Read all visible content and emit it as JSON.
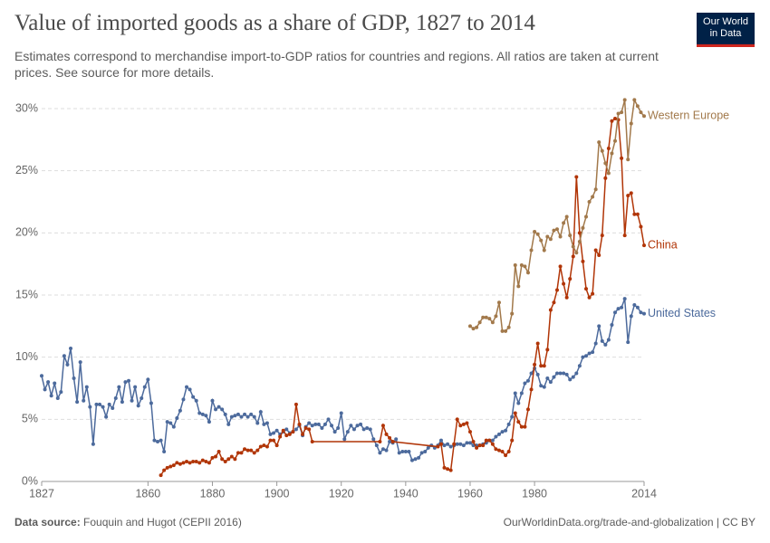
{
  "chart_data": {
    "type": "line",
    "title": "Value of imported goods as a share of GDP, 1827 to 2014",
    "subtitle": "Estimates correspond to merchandise import-to-GDP ratios for countries and regions. All ratios are taken at current prices. See source for more details.",
    "logo": {
      "line1": "Our World",
      "line2": "in Data"
    },
    "source_label": "Data source:",
    "source": "Fouquin and Hugot (CEPII 2016)",
    "footer_right": "OurWorldinData.org/trade-and-globalization | CC BY",
    "xlim": [
      1827,
      2014
    ],
    "xticks": [
      1827,
      1860,
      1880,
      1900,
      1920,
      1940,
      1960,
      1980,
      2014
    ],
    "ylim": [
      0,
      30
    ],
    "yticks": [
      {
        "value": 0,
        "label": "0%"
      },
      {
        "value": 5,
        "label": "5%"
      },
      {
        "value": 10,
        "label": "10%"
      },
      {
        "value": 15,
        "label": "15%"
      },
      {
        "value": 20,
        "label": "20%"
      },
      {
        "value": 25,
        "label": "25%"
      },
      {
        "value": 30,
        "label": "30%"
      }
    ],
    "grid": true,
    "series": [
      {
        "name": "United States",
        "color": "#4c6a9c",
        "x": [
          1827,
          1828,
          1829,
          1830,
          1831,
          1832,
          1833,
          1834,
          1835,
          1836,
          1837,
          1838,
          1839,
          1840,
          1841,
          1842,
          1843,
          1844,
          1845,
          1846,
          1847,
          1848,
          1849,
          1850,
          1851,
          1852,
          1853,
          1854,
          1855,
          1856,
          1857,
          1858,
          1859,
          1860,
          1861,
          1862,
          1863,
          1864,
          1865,
          1866,
          1867,
          1868,
          1869,
          1870,
          1871,
          1872,
          1873,
          1874,
          1875,
          1876,
          1877,
          1878,
          1879,
          1880,
          1881,
          1882,
          1883,
          1884,
          1885,
          1886,
          1887,
          1888,
          1889,
          1890,
          1891,
          1892,
          1893,
          1894,
          1895,
          1896,
          1897,
          1898,
          1899,
          1900,
          1901,
          1902,
          1903,
          1904,
          1905,
          1906,
          1907,
          1908,
          1909,
          1910,
          1911,
          1912,
          1913,
          1914,
          1915,
          1916,
          1917,
          1918,
          1919,
          1920,
          1921,
          1922,
          1923,
          1924,
          1925,
          1926,
          1927,
          1928,
          1929,
          1930,
          1931,
          1932,
          1933,
          1934,
          1935,
          1936,
          1937,
          1938,
          1939,
          1940,
          1941,
          1942,
          1943,
          1944,
          1945,
          1946,
          1947,
          1948,
          1949,
          1950,
          1951,
          1952,
          1953,
          1954,
          1955,
          1956,
          1957,
          1958,
          1959,
          1960,
          1961,
          1962,
          1963,
          1964,
          1965,
          1966,
          1967,
          1968,
          1969,
          1970,
          1971,
          1972,
          1973,
          1974,
          1975,
          1976,
          1977,
          1978,
          1979,
          1980,
          1981,
          1982,
          1983,
          1984,
          1985,
          1986,
          1987,
          1988,
          1989,
          1990,
          1991,
          1992,
          1993,
          1994,
          1995,
          1996,
          1997,
          1998,
          1999,
          2000,
          2001,
          2002,
          2003,
          2004,
          2005,
          2006,
          2007,
          2008,
          2009,
          2010,
          2011,
          2012,
          2013,
          2014
        ],
        "values": [
          8.5,
          7.4,
          8.0,
          6.9,
          7.9,
          6.7,
          7.2,
          10.1,
          9.4,
          10.7,
          8.3,
          6.4,
          9.6,
          6.5,
          7.6,
          6.0,
          3.0,
          6.2,
          6.2,
          6.0,
          5.2,
          6.2,
          5.9,
          6.7,
          7.6,
          6.4,
          8.0,
          8.1,
          6.5,
          7.6,
          6.1,
          6.7,
          7.6,
          8.2,
          6.3,
          3.3,
          3.2,
          3.3,
          2.4,
          4.8,
          4.7,
          4.4,
          5.1,
          5.7,
          6.6,
          7.6,
          7.4,
          6.8,
          6.5,
          5.5,
          5.4,
          5.3,
          4.8,
          6.5,
          5.8,
          6.0,
          5.8,
          5.4,
          4.6,
          5.2,
          5.3,
          5.4,
          5.2,
          5.4,
          5.2,
          5.4,
          5.2,
          4.7,
          5.6,
          4.6,
          4.7,
          3.8,
          3.9,
          4.1,
          3.8,
          4.0,
          4.2,
          3.9,
          4.0,
          4.2,
          4.5,
          3.7,
          4.4,
          4.7,
          4.5,
          4.6,
          4.6,
          4.3,
          4.6,
          5.0,
          4.5,
          4.0,
          4.3,
          5.5,
          3.4,
          4.0,
          4.5,
          4.2,
          4.5,
          4.6,
          4.2,
          4.3,
          4.2,
          3.4,
          2.9,
          2.3,
          2.6,
          2.5,
          3.2,
          3.1,
          3.4,
          2.3,
          2.4,
          2.4,
          2.4,
          1.7,
          1.8,
          1.9,
          2.3,
          2.4,
          2.7,
          2.9,
          2.7,
          2.9,
          3.3,
          2.9,
          3.0,
          2.8,
          2.9,
          3.0,
          3.0,
          2.9,
          3.1,
          3.1,
          2.9,
          2.9,
          2.9,
          3.0,
          3.1,
          3.3,
          3.3,
          3.6,
          3.8,
          4.0,
          4.1,
          4.6,
          5.2,
          7.1,
          6.3,
          7.1,
          7.9,
          8.1,
          8.7,
          9.1,
          8.6,
          7.7,
          7.6,
          8.3,
          8.0,
          8.4,
          8.7,
          8.7,
          8.7,
          8.6,
          8.2,
          8.4,
          8.7,
          9.3,
          10.0,
          10.1,
          10.3,
          10.4,
          11.1,
          12.5,
          11.3,
          11.0,
          11.4,
          12.6,
          13.6,
          13.9,
          14.0,
          14.7,
          11.2,
          13.3,
          14.2,
          14.0,
          13.6,
          13.5
        ]
      },
      {
        "name": "China",
        "color": "#b13507",
        "x": [
          1864,
          1865,
          1866,
          1867,
          1868,
          1869,
          1870,
          1871,
          1872,
          1873,
          1874,
          1875,
          1876,
          1877,
          1878,
          1879,
          1880,
          1881,
          1882,
          1883,
          1884,
          1885,
          1886,
          1887,
          1888,
          1889,
          1890,
          1891,
          1892,
          1893,
          1894,
          1895,
          1896,
          1897,
          1898,
          1899,
          1900,
          1901,
          1902,
          1903,
          1904,
          1905,
          1906,
          1907,
          1908,
          1909,
          1910,
          1911,
          1932,
          1933,
          1934,
          1935,
          1936,
          1950,
          1951,
          1952,
          1953,
          1954,
          1955,
          1956,
          1957,
          1958,
          1959,
          1960,
          1961,
          1962,
          1963,
          1964,
          1965,
          1966,
          1967,
          1968,
          1969,
          1970,
          1971,
          1972,
          1973,
          1974,
          1975,
          1976,
          1977,
          1978,
          1979,
          1980,
          1981,
          1982,
          1983,
          1984,
          1985,
          1986,
          1987,
          1988,
          1989,
          1990,
          1991,
          1992,
          1993,
          1994,
          1995,
          1996,
          1997,
          1998,
          1999,
          2000,
          2001,
          2002,
          2003,
          2004,
          2005,
          2006,
          2007,
          2008,
          2009,
          2010,
          2011,
          2012,
          2013,
          2014
        ],
        "values": [
          0.5,
          0.9,
          1.1,
          1.2,
          1.3,
          1.5,
          1.4,
          1.5,
          1.6,
          1.5,
          1.6,
          1.6,
          1.5,
          1.7,
          1.6,
          1.5,
          1.9,
          2.0,
          2.4,
          1.8,
          1.6,
          1.8,
          2.0,
          1.8,
          2.3,
          2.3,
          2.6,
          2.5,
          2.5,
          2.3,
          2.5,
          2.8,
          2.9,
          2.8,
          3.3,
          3.3,
          2.9,
          3.6,
          4.1,
          3.7,
          3.8,
          4.0,
          6.2,
          4.6,
          3.8,
          4.3,
          4.2,
          3.2,
          3.2,
          4.5,
          3.8,
          3.5,
          3.2,
          2.8,
          3.0,
          1.1,
          1.0,
          0.9,
          3.0,
          5.0,
          4.5,
          4.6,
          4.7,
          4.0,
          3.2,
          2.7,
          2.9,
          2.9,
          3.3,
          3.3,
          3.0,
          2.6,
          2.5,
          2.4,
          2.1,
          2.4,
          3.3,
          5.5,
          4.8,
          4.4,
          4.4,
          5.8,
          7.4,
          9.4,
          11.1,
          9.3,
          9.3,
          10.6,
          13.8,
          14.4,
          15.4,
          17.3,
          15.9,
          14.8,
          16.3,
          18.1,
          24.5,
          20.0,
          17.7,
          15.5,
          14.8,
          15.1,
          18.6,
          18.2,
          19.8,
          24.4,
          26.8,
          29.0,
          29.2,
          29.1,
          26.0,
          19.8,
          23.0,
          23.2,
          21.5,
          21.5,
          20.5,
          19.0
        ]
      },
      {
        "name": "Western Europe",
        "color": "#a2794b",
        "x": [
          1960,
          1961,
          1962,
          1963,
          1964,
          1965,
          1966,
          1967,
          1968,
          1969,
          1970,
          1971,
          1972,
          1973,
          1974,
          1975,
          1976,
          1977,
          1978,
          1979,
          1980,
          1981,
          1982,
          1983,
          1984,
          1985,
          1986,
          1987,
          1988,
          1989,
          1990,
          1991,
          1992,
          1993,
          1994,
          1995,
          1996,
          1997,
          1998,
          1999,
          2000,
          2001,
          2002,
          2003,
          2004,
          2005,
          2006,
          2007,
          2008,
          2009,
          2010,
          2011,
          2012,
          2013,
          2014
        ],
        "values": [
          12.5,
          12.3,
          12.4,
          12.8,
          13.2,
          13.2,
          13.1,
          12.8,
          13.3,
          14.4,
          12.1,
          12.1,
          12.4,
          13.5,
          17.4,
          15.7,
          17.4,
          17.3,
          16.8,
          18.6,
          20.1,
          19.9,
          19.4,
          18.6,
          19.7,
          19.5,
          20.2,
          20.3,
          19.7,
          20.8,
          21.3,
          19.8,
          18.9,
          18.4,
          19.3,
          20.4,
          21.3,
          22.5,
          22.9,
          23.5,
          27.3,
          26.6,
          25.6,
          24.8,
          26.4,
          27.4,
          29.6,
          29.7,
          30.7,
          25.9,
          28.8,
          30.7,
          30.2,
          29.7,
          29.4
        ]
      }
    ]
  }
}
